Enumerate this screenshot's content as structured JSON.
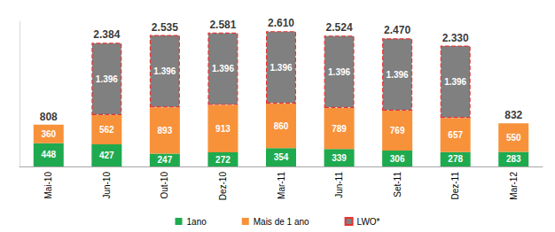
{
  "chart_data": {
    "type": "bar",
    "stacked": true,
    "categories": [
      "Mai-10",
      "Jun-10",
      "Out-10",
      "Dez-10",
      "Mar-11",
      "Jun-11",
      "Set-11",
      "Dez-11",
      "Mar-12"
    ],
    "series": [
      {
        "name": "1ano",
        "color": "#1faa4f",
        "values": [
          448,
          427,
          247,
          272,
          354,
          339,
          306,
          278,
          283
        ]
      },
      {
        "name": "Mais de 1 ano",
        "color": "#f7923a",
        "values": [
          360,
          562,
          893,
          913,
          860,
          789,
          769,
          657,
          550
        ]
      },
      {
        "name": "LWO*",
        "color": "#808080",
        "line_style": "dashed",
        "values": [
          null,
          1396,
          1396,
          1396,
          1396,
          1396,
          1396,
          1396,
          null
        ],
        "value_labels": [
          null,
          "1.396",
          "1.396",
          "1.396",
          "1.396",
          "1.396",
          "1.396",
          "1.396",
          null
        ]
      }
    ],
    "totals": [
      808,
      2384,
      2535,
      2581,
      2610,
      2524,
      2470,
      2330,
      832
    ],
    "total_labels": [
      "808",
      "2.384",
      "2.535",
      "2.581",
      "2.610",
      "2.524",
      "2.470",
      "2.330",
      "832"
    ],
    "ylim": [
      0,
      2800
    ],
    "data_labels": true,
    "tick_labels": "x",
    "grid": false,
    "legend": "bottom"
  }
}
